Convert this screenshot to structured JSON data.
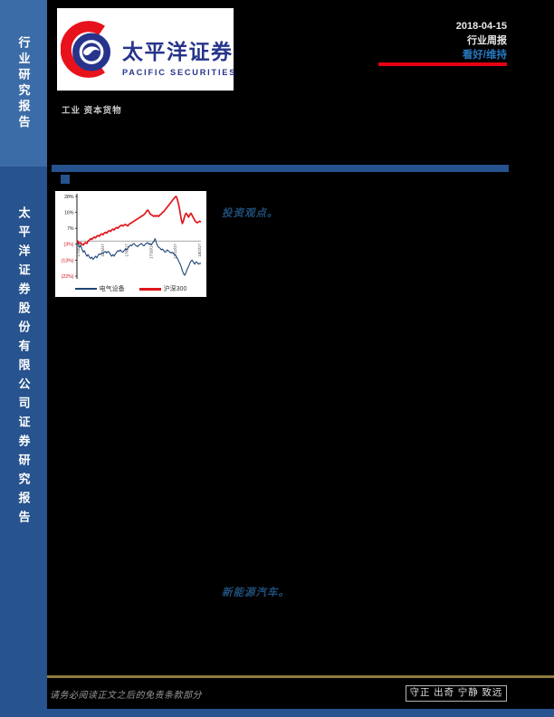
{
  "header": {
    "date": "2018-04-15",
    "report_type": "行业周报",
    "rating": "看好/维持",
    "industry_label": "工业 资本货物"
  },
  "logo": {
    "name_cn": "太平洋证券",
    "name_en": "PACIFIC SECURITIES"
  },
  "sidebar": {
    "top_label": "行业研究报告",
    "bottom_label": "太平洋证券股份有限公司证券研究报告"
  },
  "body": {
    "highlight_investment": "投资观点。",
    "highlight_nev": "新能源汽车。"
  },
  "footer": {
    "disclaimer": "请务必阅读正文之后的免责条款部分",
    "motto": "守正 出奇 宁静 致远"
  },
  "colors": {
    "page_bg": "#000000",
    "sidebar_light": "#3b6ca7",
    "sidebar_dark": "#27538e",
    "brand_blue": "#27348b",
    "brand_red": "#e8121c",
    "accent_red": "#e60012",
    "rating_blue": "#2579c0",
    "bar_blue": "#26528e",
    "highlight_blue": "#1f4e79",
    "gold_line": "#8d7c3c",
    "footer_text": "#9a9a9a",
    "motto_text": "#dcdcdc",
    "header_text": "#e8e8e8",
    "industry_text": "#c9c9c9"
  },
  "chart_data": {
    "type": "line",
    "title": "",
    "xlabel": "",
    "ylabel": "",
    "ylim": [
      -22,
      28
    ],
    "y_tick_labels": [
      "28%",
      "16%",
      "7%",
      "(3%)",
      "(13%)",
      "(22%)"
    ],
    "y_tick_values": [
      28,
      16,
      7,
      -3,
      -13,
      -22
    ],
    "x_tick_labels": [
      "17/4/17",
      "17/6/17",
      "17/8/17",
      "17/10/17",
      "17/12/17",
      "18/2/17"
    ],
    "grid": "zero-line-only",
    "legend_position": "bottom",
    "series": [
      {
        "name": "电气设备",
        "color": "#1f4577",
        "points": [
          [
            0,
            0
          ],
          [
            0.01,
            -2
          ],
          [
            0.02,
            -4
          ],
          [
            0.03,
            -2.5
          ],
          [
            0.04,
            -5
          ],
          [
            0.05,
            -7
          ],
          [
            0.06,
            -6
          ],
          [
            0.07,
            -8
          ],
          [
            0.08,
            -9.5
          ],
          [
            0.09,
            -8.5
          ],
          [
            0.1,
            -10
          ],
          [
            0.11,
            -11
          ],
          [
            0.12,
            -10
          ],
          [
            0.13,
            -11.5
          ],
          [
            0.14,
            -10.5
          ],
          [
            0.15,
            -9.5
          ],
          [
            0.16,
            -10.5
          ],
          [
            0.17,
            -9
          ],
          [
            0.18,
            -8
          ],
          [
            0.19,
            -8.5
          ],
          [
            0.2,
            -7.5
          ],
          [
            0.21,
            -8
          ],
          [
            0.22,
            -7
          ],
          [
            0.23,
            -6.5
          ],
          [
            0.24,
            -7.5
          ],
          [
            0.25,
            -6.5
          ],
          [
            0.26,
            -7
          ],
          [
            0.27,
            -8.5
          ],
          [
            0.28,
            -9.5
          ],
          [
            0.29,
            -8.5
          ],
          [
            0.3,
            -9.5
          ],
          [
            0.31,
            -8
          ],
          [
            0.32,
            -7
          ],
          [
            0.33,
            -6
          ],
          [
            0.34,
            -6.5
          ],
          [
            0.35,
            -5.5
          ],
          [
            0.36,
            -6.5
          ],
          [
            0.37,
            -7
          ],
          [
            0.38,
            -6
          ],
          [
            0.39,
            -5
          ],
          [
            0.4,
            -5.5
          ],
          [
            0.41,
            -4.5
          ],
          [
            0.42,
            -3.5
          ],
          [
            0.43,
            -2.5
          ],
          [
            0.44,
            -3
          ],
          [
            0.45,
            -2
          ],
          [
            0.46,
            -1.5
          ],
          [
            0.47,
            -2.5
          ],
          [
            0.48,
            -3
          ],
          [
            0.49,
            -3.5
          ],
          [
            0.5,
            -2.5
          ],
          [
            0.51,
            -2
          ],
          [
            0.52,
            -1.5
          ],
          [
            0.53,
            -2.5
          ],
          [
            0.54,
            -3
          ],
          [
            0.55,
            -2
          ],
          [
            0.56,
            -1.5
          ],
          [
            0.57,
            -1
          ],
          [
            0.58,
            -2
          ],
          [
            0.59,
            -1.5
          ],
          [
            0.6,
            -2.5
          ],
          [
            0.61,
            -1
          ],
          [
            0.62,
            -0.5
          ],
          [
            0.63,
            1.5
          ],
          [
            0.64,
            -1
          ],
          [
            0.65,
            -3
          ],
          [
            0.66,
            -4
          ],
          [
            0.67,
            -4.5
          ],
          [
            0.68,
            -5.5
          ],
          [
            0.69,
            -5
          ],
          [
            0.7,
            -6
          ],
          [
            0.71,
            -7
          ],
          [
            0.72,
            -6.5
          ],
          [
            0.73,
            -5.5
          ],
          [
            0.74,
            -6.5
          ],
          [
            0.75,
            -7
          ],
          [
            0.76,
            -7.5
          ],
          [
            0.77,
            -7
          ],
          [
            0.78,
            -8
          ],
          [
            0.79,
            -8.5
          ],
          [
            0.8,
            -9.5
          ],
          [
            0.81,
            -11
          ],
          [
            0.82,
            -12.5
          ],
          [
            0.83,
            -14
          ],
          [
            0.84,
            -16
          ],
          [
            0.85,
            -18.5
          ],
          [
            0.86,
            -20.5
          ],
          [
            0.87,
            -21.5
          ],
          [
            0.88,
            -19.5
          ],
          [
            0.89,
            -17.5
          ],
          [
            0.9,
            -16
          ],
          [
            0.91,
            -14
          ],
          [
            0.92,
            -12.5
          ],
          [
            0.93,
            -12
          ],
          [
            0.94,
            -13.5
          ],
          [
            0.95,
            -14.5
          ],
          [
            0.96,
            -13
          ],
          [
            0.97,
            -13.5
          ],
          [
            0.98,
            -14.5
          ],
          [
            0.99,
            -14
          ],
          [
            1,
            -14
          ]
        ]
      },
      {
        "name": "沪深300",
        "color": "#e0161b",
        "points": [
          [
            0,
            0.5
          ],
          [
            0.01,
            -0.5
          ],
          [
            0.02,
            -1.5
          ],
          [
            0.03,
            -1
          ],
          [
            0.04,
            -2
          ],
          [
            0.05,
            -2.5
          ],
          [
            0.06,
            -1.5
          ],
          [
            0.07,
            -1
          ],
          [
            0.08,
            -1.5
          ],
          [
            0.09,
            0
          ],
          [
            0.1,
            0.5
          ],
          [
            0.11,
            1.5
          ],
          [
            0.12,
            1
          ],
          [
            0.13,
            2
          ],
          [
            0.14,
            2.5
          ],
          [
            0.15,
            2
          ],
          [
            0.16,
            3
          ],
          [
            0.17,
            3.5
          ],
          [
            0.18,
            3
          ],
          [
            0.19,
            4
          ],
          [
            0.2,
            4.5
          ],
          [
            0.21,
            4
          ],
          [
            0.22,
            5
          ],
          [
            0.23,
            5.5
          ],
          [
            0.24,
            5
          ],
          [
            0.25,
            6
          ],
          [
            0.26,
            6.5
          ],
          [
            0.27,
            6
          ],
          [
            0.28,
            7
          ],
          [
            0.29,
            7.5
          ],
          [
            0.3,
            7
          ],
          [
            0.31,
            8
          ],
          [
            0.32,
            8.5
          ],
          [
            0.33,
            8
          ],
          [
            0.34,
            9
          ],
          [
            0.35,
            9.5
          ],
          [
            0.36,
            10
          ],
          [
            0.37,
            9.5
          ],
          [
            0.38,
            10
          ],
          [
            0.39,
            10.5
          ],
          [
            0.4,
            10
          ],
          [
            0.41,
            9.5
          ],
          [
            0.42,
            10.5
          ],
          [
            0.43,
            11
          ],
          [
            0.44,
            11.5
          ],
          [
            0.45,
            12
          ],
          [
            0.46,
            12.5
          ],
          [
            0.47,
            13
          ],
          [
            0.48,
            13.5
          ],
          [
            0.49,
            14
          ],
          [
            0.5,
            14.5
          ],
          [
            0.51,
            15
          ],
          [
            0.52,
            15.5
          ],
          [
            0.53,
            16
          ],
          [
            0.54,
            16.5
          ],
          [
            0.55,
            17.5
          ],
          [
            0.56,
            18.5
          ],
          [
            0.57,
            19.5
          ],
          [
            0.58,
            18.5
          ],
          [
            0.59,
            17
          ],
          [
            0.6,
            16.5
          ],
          [
            0.61,
            16
          ],
          [
            0.62,
            15.5
          ],
          [
            0.63,
            16
          ],
          [
            0.64,
            15.5
          ],
          [
            0.65,
            16
          ],
          [
            0.66,
            15.5
          ],
          [
            0.67,
            16.5
          ],
          [
            0.68,
            17
          ],
          [
            0.69,
            18
          ],
          [
            0.7,
            18.5
          ],
          [
            0.71,
            19.5
          ],
          [
            0.72,
            20.5
          ],
          [
            0.73,
            21.5
          ],
          [
            0.74,
            22.5
          ],
          [
            0.75,
            23.5
          ],
          [
            0.76,
            24.5
          ],
          [
            0.77,
            25.5
          ],
          [
            0.78,
            26.5
          ],
          [
            0.79,
            27.5
          ],
          [
            0.8,
            28
          ],
          [
            0.81,
            26
          ],
          [
            0.82,
            23
          ],
          [
            0.83,
            19
          ],
          [
            0.84,
            14
          ],
          [
            0.85,
            11
          ],
          [
            0.86,
            13
          ],
          [
            0.87,
            16
          ],
          [
            0.88,
            17.5
          ],
          [
            0.89,
            16.5
          ],
          [
            0.9,
            15
          ],
          [
            0.91,
            16.5
          ],
          [
            0.92,
            17.5
          ],
          [
            0.93,
            16
          ],
          [
            0.94,
            14.5
          ],
          [
            0.95,
            13
          ],
          [
            0.96,
            12
          ],
          [
            0.97,
            11.5
          ],
          [
            0.98,
            12
          ],
          [
            0.99,
            12.5
          ],
          [
            1,
            12
          ]
        ]
      }
    ]
  }
}
